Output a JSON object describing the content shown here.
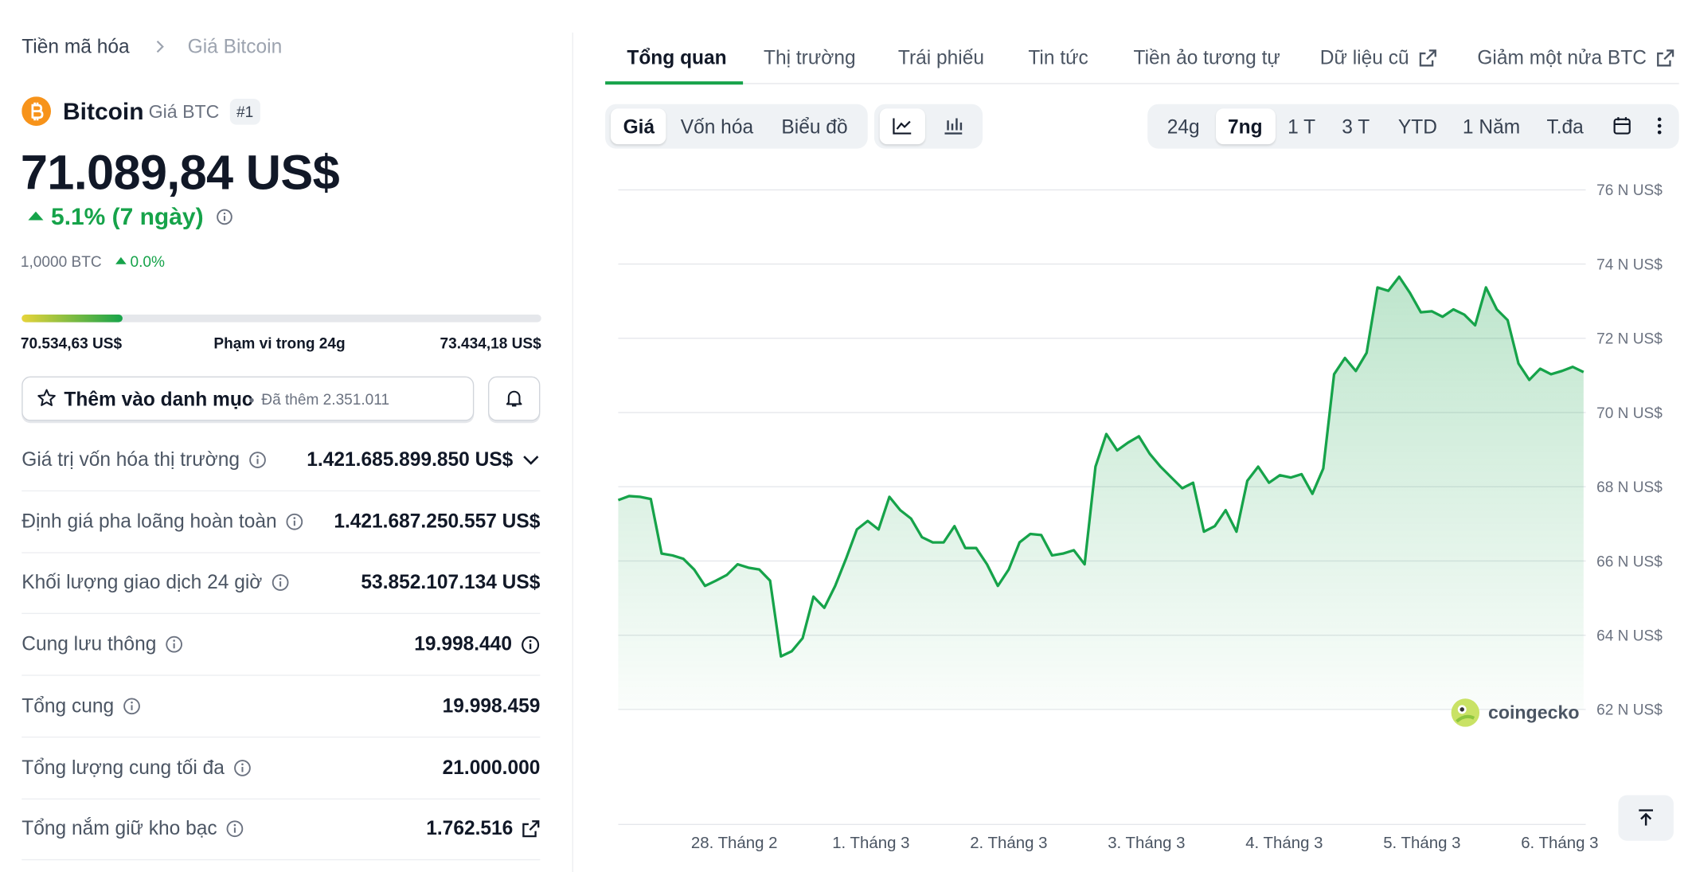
{
  "breadcrumb": [
    "Tiền mã hóa",
    "Giá Bitcoin"
  ],
  "coin": {
    "name": "Bitcoin",
    "symbol_label": "Giá BTC",
    "rank": "#1",
    "price": "71.089,84 US$",
    "change": "5.1% (7 ngày)",
    "btc_amount": "1,0000 BTC",
    "btc_change": "0.0%"
  },
  "range": {
    "low": "70.534,63 US$",
    "label": "Phạm vi trong 24g",
    "high": "73.434,18 US$"
  },
  "watchlist": {
    "button": "Thêm vào danh mục",
    "added": "Đã thêm 2.351.011"
  },
  "stats": [
    {
      "label": "Giá trị vốn hóa thị trường",
      "value": "1.421.685.899.850 US$"
    },
    {
      "label": "Định giá pha loãng hoàn toàn",
      "value": "1.421.687.250.557 US$"
    },
    {
      "label": "Khối lượng giao dịch 24 giờ",
      "value": "53.852.107.134 US$"
    },
    {
      "label": "Cung lưu thông",
      "value": "19.998.440"
    },
    {
      "label": "Tổng cung",
      "value": "19.998.459"
    },
    {
      "label": "Tổng lượng cung tối đa",
      "value": "21.000.000"
    },
    {
      "label": "Tổng nắm giữ kho bạc",
      "value": "1.762.516"
    }
  ],
  "tabs": [
    "Tổng quan",
    "Thị trường",
    "Trái phiếu",
    "Tin tức",
    "Tiền ảo tương tự",
    "Dữ liệu cũ",
    "Giảm một nửa BTC"
  ],
  "toolbar": {
    "views": [
      "Giá",
      "Vốn hóa",
      "Biểu đồ"
    ],
    "ranges": [
      "24g",
      "7ng",
      "1 T",
      "3 T",
      "YTD",
      "1 Năm",
      "T.đa"
    ]
  },
  "watermark": "coingecko",
  "chart_data": {
    "type": "line",
    "color": "#16a34a",
    "values": [
      67.64,
      67.75,
      67.73,
      67.67,
      66.2,
      66.15,
      66.06,
      65.77,
      65.33,
      65.47,
      65.62,
      65.91,
      65.82,
      65.77,
      65.47,
      63.43,
      63.57,
      63.92,
      65.04,
      64.74,
      65.33,
      66.06,
      66.85,
      67.08,
      66.85,
      67.73,
      67.37,
      67.14,
      66.64,
      66.5,
      66.5,
      66.94,
      66.35,
      66.35,
      65.91,
      65.33,
      65.77,
      66.5,
      66.73,
      66.7,
      66.15,
      66.2,
      66.29,
      65.91,
      68.54,
      69.42,
      68.98,
      69.19,
      69.36,
      68.89,
      68.54,
      68.25,
      67.96,
      68.11,
      66.79,
      66.94,
      67.37,
      66.79,
      68.16,
      68.54,
      68.11,
      68.31,
      68.25,
      68.34,
      67.81,
      68.49,
      71.03,
      71.47,
      71.12,
      71.61,
      73.37,
      73.28,
      73.66,
      73.22,
      72.7,
      72.73,
      72.58,
      72.78,
      72.64,
      72.35,
      73.37,
      72.78,
      72.49,
      71.32,
      70.88,
      71.18,
      71.03,
      71.12,
      71.23,
      71.09
    ],
    "xlim": [
      0,
      89
    ],
    "xticks": [
      {
        "value": 10.7,
        "label": "28. Tháng 2"
      },
      {
        "value": 23.3,
        "label": "1. Tháng 3"
      },
      {
        "value": 36,
        "label": "2. Tháng 3"
      },
      {
        "value": 48.7,
        "label": "3. Tháng 3"
      },
      {
        "value": 61.4,
        "label": "4. Tháng 3"
      },
      {
        "value": 74.1,
        "label": "5. Tháng 3"
      },
      {
        "value": 86.8,
        "label": "6. Tháng 3"
      }
    ],
    "ylim": [
      62,
      76
    ],
    "yticks": [
      {
        "value": 62,
        "label": "62 N US$"
      },
      {
        "value": 64,
        "label": "64 N US$"
      },
      {
        "value": 66,
        "label": "66 N US$"
      },
      {
        "value": 68,
        "label": "68 N US$"
      },
      {
        "value": 70,
        "label": "70 N US$"
      },
      {
        "value": 72,
        "label": "72 N US$"
      },
      {
        "value": 74,
        "label": "74 N US$"
      },
      {
        "value": 76,
        "label": "76 N US$"
      }
    ],
    "grid": true
  }
}
